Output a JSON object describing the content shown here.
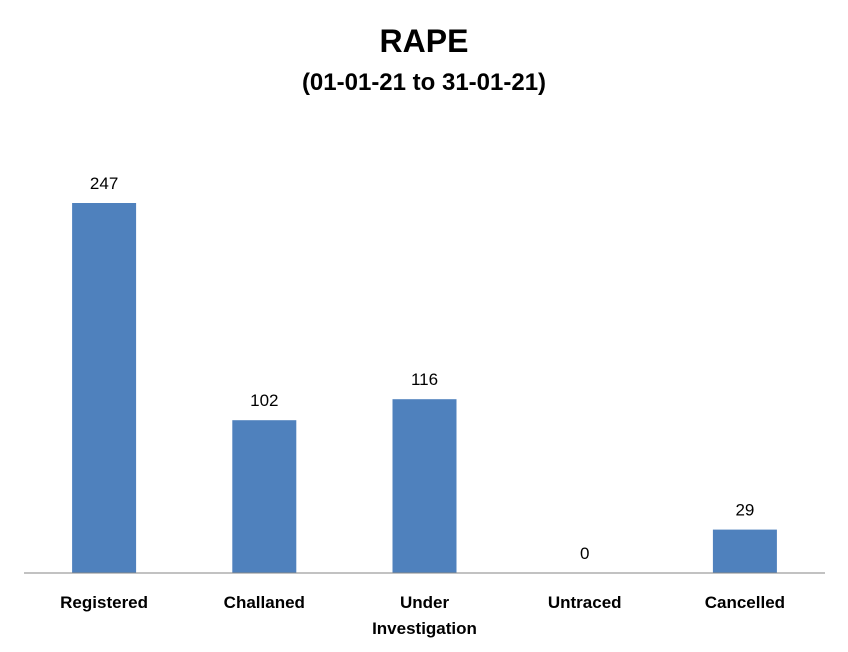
{
  "chart_data": {
    "type": "bar",
    "title": "RAPE",
    "subtitle": "(01-01-21 to 31-01-21)",
    "categories": [
      "Registered",
      "Challaned",
      "Under Investigation",
      "Untraced",
      "Cancelled"
    ],
    "category_lines": [
      [
        "Registered"
      ],
      [
        "Challaned"
      ],
      [
        "Under",
        "Investigation"
      ],
      [
        "Untraced"
      ],
      [
        "Cancelled"
      ]
    ],
    "values": [
      247,
      102,
      116,
      0,
      29
    ],
    "data_labels": [
      "247",
      "102",
      "116",
      "0",
      "29"
    ],
    "xlabel": "",
    "ylabel": "",
    "ylim": [
      0,
      247
    ],
    "grid": false,
    "legend": "none",
    "bar_color": "#4F81BD",
    "axis_color": "#868686"
  }
}
